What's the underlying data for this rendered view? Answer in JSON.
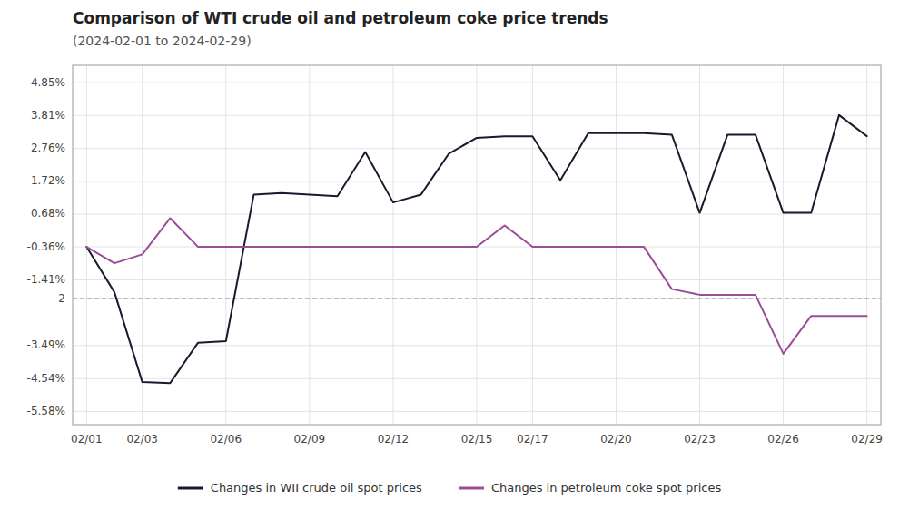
{
  "chart_data": {
    "type": "line",
    "title": "Comparison of WTI crude oil and petroleum coke price trends",
    "subtitle": "(2024-02-01 to 2024-02-29)",
    "x": [
      1,
      2,
      3,
      4,
      5,
      6,
      7,
      8,
      9,
      10,
      11,
      12,
      13,
      14,
      15,
      16,
      17,
      18,
      19,
      20,
      21,
      22,
      23,
      24,
      25,
      26,
      27,
      28,
      29
    ],
    "series": [
      {
        "name": "Changes in WII crude oil spot prices",
        "color": "#1a1a2e",
        "values": [
          -0.36,
          -1.8,
          -4.65,
          -4.68,
          -3.4,
          -3.35,
          1.3,
          1.35,
          1.3,
          1.25,
          2.65,
          1.05,
          1.3,
          2.6,
          3.1,
          3.15,
          3.15,
          1.75,
          3.25,
          3.25,
          3.25,
          3.2,
          0.72,
          3.2,
          3.2,
          0.72,
          0.72,
          3.82,
          3.15
        ]
      },
      {
        "name": "Changes in petroleum coke spot prices",
        "color": "#9b4d96",
        "values": [
          -0.36,
          -0.88,
          -0.6,
          0.55,
          -0.36,
          -0.36,
          -0.36,
          -0.36,
          -0.36,
          -0.36,
          -0.36,
          -0.36,
          -0.36,
          -0.36,
          -0.36,
          0.32,
          -0.36,
          -0.36,
          -0.36,
          -0.36,
          -0.36,
          -1.7,
          -1.88,
          -1.88,
          -1.88,
          -3.75,
          -2.55,
          -2.55,
          -2.55
        ]
      }
    ],
    "reference_line": -2.0,
    "xlim": [
      0.5,
      29.5
    ],
    "xticks": [
      {
        "value": 1,
        "label": "02/01"
      },
      {
        "value": 3,
        "label": "02/03"
      },
      {
        "value": 6,
        "label": "02/06"
      },
      {
        "value": 9,
        "label": "02/09"
      },
      {
        "value": 12,
        "label": "02/12"
      },
      {
        "value": 15,
        "label": "02/15"
      },
      {
        "value": 17,
        "label": "02/17"
      },
      {
        "value": 20,
        "label": "02/20"
      },
      {
        "value": 23,
        "label": "02/23"
      },
      {
        "value": 26,
        "label": "02/26"
      },
      {
        "value": 29,
        "label": "02/29"
      }
    ],
    "ylim": [
      -6.0,
      5.4
    ],
    "yticks": [
      {
        "value": 4.85,
        "label": "4.85%"
      },
      {
        "value": 3.81,
        "label": "3.81%"
      },
      {
        "value": 2.76,
        "label": "2.76%"
      },
      {
        "value": 1.72,
        "label": "1.72%"
      },
      {
        "value": 0.68,
        "label": "0.68%"
      },
      {
        "value": -0.36,
        "label": "-0.36%"
      },
      {
        "value": -1.41,
        "label": "-1.41%"
      },
      -2,
      {
        "value": -3.49,
        "label": "-3.49%"
      },
      {
        "value": -4.54,
        "label": "-4.54%"
      },
      {
        "value": -5.58,
        "label": "-5.58%"
      }
    ],
    "grid": true,
    "legend": "bottom"
  }
}
